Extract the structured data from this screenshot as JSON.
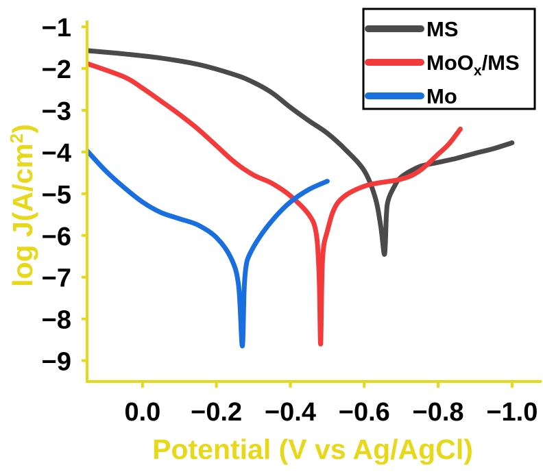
{
  "chart_data": {
    "type": "line",
    "title": "",
    "xlabel": "Potential (V vs Ag/AgCl)",
    "ylabel_main": "log J(A/cm",
    "ylabel_sup": "2",
    "ylabel_end": ")",
    "xlim": [
      0.15,
      -1.08
    ],
    "ylim": [
      -9.5,
      -0.85
    ],
    "x_ticks": [
      0.0,
      -0.2,
      -0.4,
      -0.6,
      -0.8,
      -1.0
    ],
    "x_tick_labels": [
      "0.0",
      "−0.2",
      "−0.4",
      "−0.6",
      "−0.8",
      "−1.0"
    ],
    "y_ticks": [
      -1,
      -2,
      -3,
      -4,
      -5,
      -6,
      -7,
      -8,
      -9
    ],
    "y_tick_labels": [
      "−1",
      "−2",
      "−3",
      "−4",
      "−5",
      "−6",
      "−7",
      "−8",
      "−9"
    ],
    "axis_color": "#E8D81A",
    "legend_position": "top-right",
    "series": [
      {
        "name": "MS",
        "legend_main": "MS",
        "legend_sub": "",
        "legend_end": "",
        "color": "#4A4A4A",
        "x": [
          0.15,
          0.05,
          -0.05,
          -0.15,
          -0.25,
          -0.3,
          -0.35,
          -0.4,
          -0.45,
          -0.5,
          -0.55,
          -0.6,
          -0.63,
          -0.645,
          -0.655,
          -0.66,
          -0.665,
          -0.68,
          -0.7,
          -0.75,
          -0.8,
          -0.85,
          -0.9,
          -0.95,
          -1.0
        ],
        "y": [
          -1.57,
          -1.65,
          -1.75,
          -1.9,
          -2.15,
          -2.33,
          -2.58,
          -2.93,
          -3.25,
          -3.55,
          -3.95,
          -4.45,
          -5.1,
          -5.8,
          -6.45,
          -5.5,
          -5.15,
          -4.85,
          -4.6,
          -4.35,
          -4.25,
          -4.15,
          -4.03,
          -3.92,
          -3.78
        ]
      },
      {
        "name": "MoOx/MS",
        "legend_main": "MoO",
        "legend_sub": "x",
        "legend_end": "/MS",
        "color": "#F43A3A",
        "x": [
          0.15,
          0.05,
          0.0,
          -0.05,
          -0.1,
          -0.15,
          -0.2,
          -0.25,
          -0.3,
          -0.35,
          -0.4,
          -0.45,
          -0.47,
          -0.478,
          -0.482,
          -0.487,
          -0.5,
          -0.53,
          -0.6,
          -0.7,
          -0.75,
          -0.8,
          -0.83,
          -0.86
        ],
        "y": [
          -1.88,
          -2.2,
          -2.47,
          -2.78,
          -3.1,
          -3.45,
          -3.85,
          -4.25,
          -4.55,
          -4.75,
          -5.05,
          -5.5,
          -5.95,
          -7.0,
          -8.6,
          -6.6,
          -5.9,
          -5.2,
          -4.82,
          -4.65,
          -4.45,
          -4.05,
          -3.8,
          -3.45
        ]
      },
      {
        "name": "Mo",
        "legend_main": "Mo",
        "legend_sub": "",
        "legend_end": "",
        "color": "#1A6FE0",
        "x": [
          0.15,
          0.1,
          0.05,
          0.0,
          -0.05,
          -0.1,
          -0.15,
          -0.2,
          -0.24,
          -0.26,
          -0.27,
          -0.275,
          -0.28,
          -0.29,
          -0.32,
          -0.36,
          -0.4,
          -0.45,
          -0.5
        ],
        "y": [
          -3.97,
          -4.45,
          -4.85,
          -5.2,
          -5.45,
          -5.6,
          -5.75,
          -6.05,
          -6.55,
          -7.2,
          -8.65,
          -7.3,
          -6.75,
          -6.45,
          -6.0,
          -5.55,
          -5.2,
          -4.9,
          -4.7
        ]
      }
    ]
  }
}
